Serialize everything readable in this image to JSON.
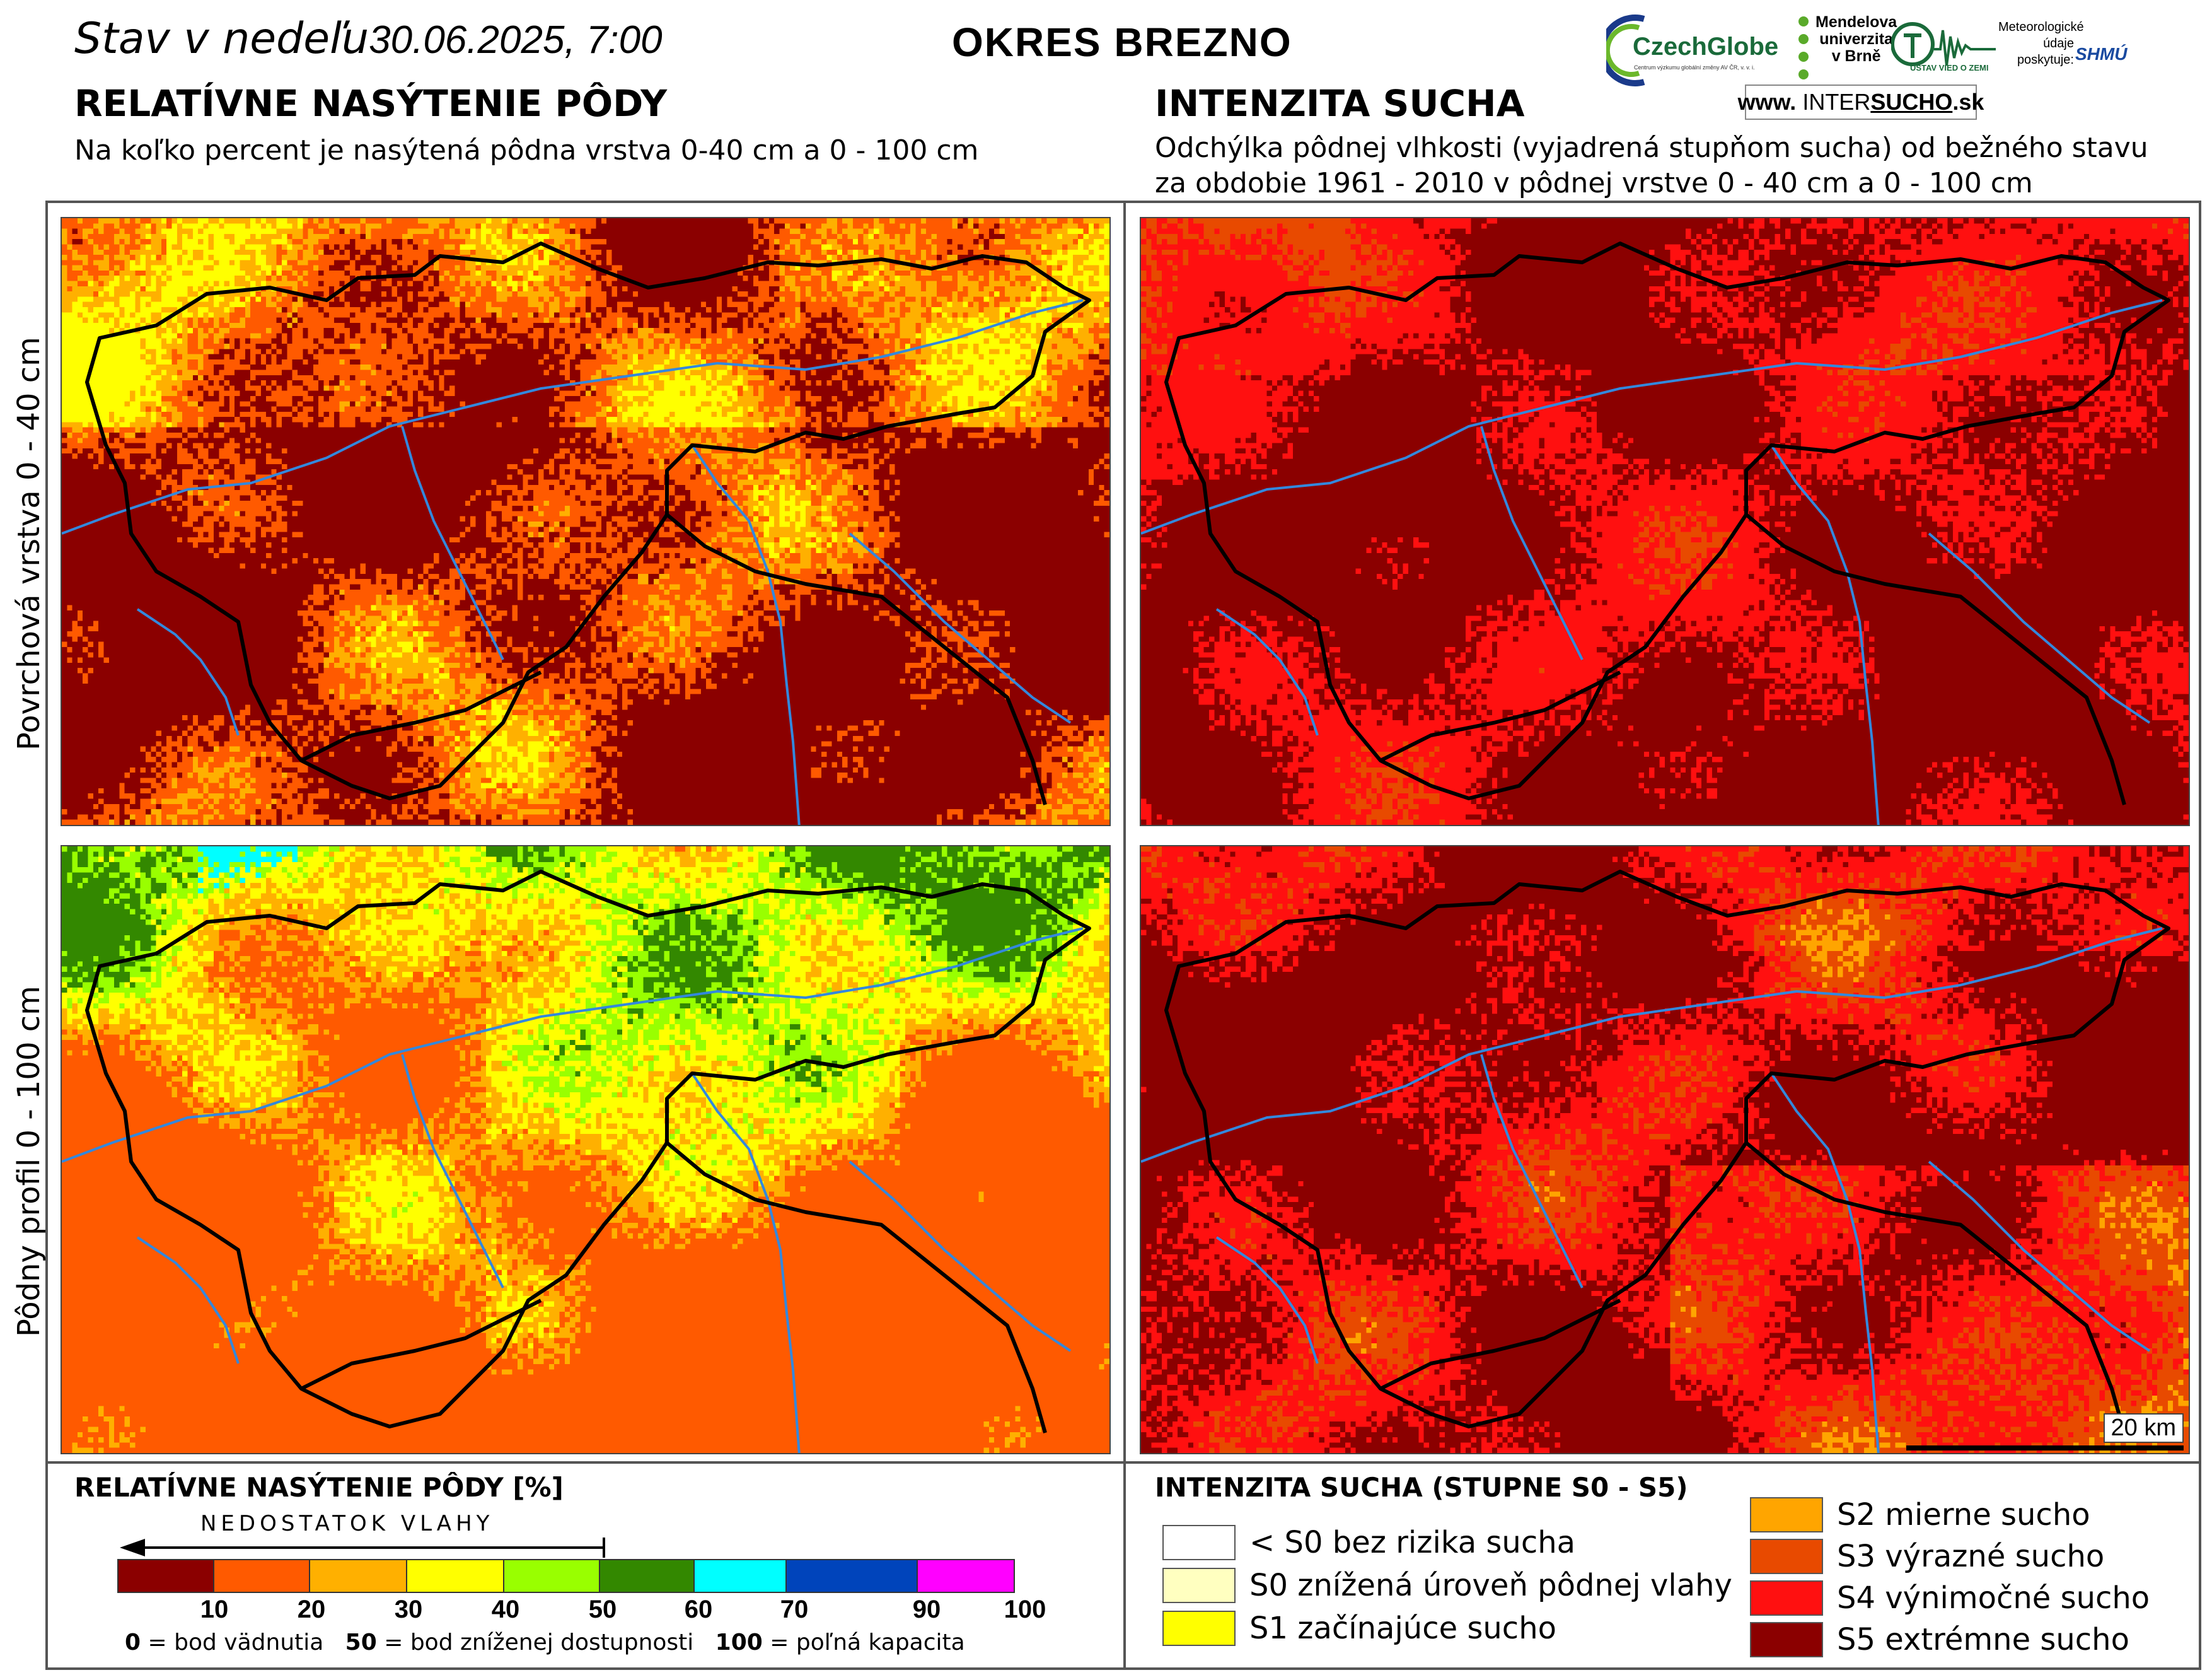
{
  "header": {
    "stav_prefix": "Stav v nedeľu",
    "date": "30.06.2025, 7:00",
    "district": "OKRES  BREZNO"
  },
  "left_panel": {
    "title": "RELATÍVNE NASÝTENIE PÔDY",
    "subtitle": "Na koľko percent je nasýtená pôdna vrstva 0-40 cm a 0 - 100 cm"
  },
  "right_panel": {
    "title": "INTENZITA SUCHA",
    "subtitle_line1": "Odchýlka pôdnej vlhkosti (vyjadrená stupňom sucha) od bežného stavu",
    "subtitle_line2": "za obdobie 1961 - 2010 v pôdnej vrstve 0 - 40 cm a 0 - 100 cm"
  },
  "row_labels": {
    "top": "Povrchová vrstva 0 - 40 cm",
    "bottom": "Pôdny profil 0 - 100 cm"
  },
  "logos": {
    "czechglobe": "CzechGlobe",
    "czechglobe_sub": "Centrum výzkumu globální změny AV ČR, v. v. i.",
    "mendel_line1": "Mendelova",
    "mendel_line2": "univerzita",
    "mendel_line3": "v Brně",
    "ustav": "ÚSTAV VIED O ZEMI",
    "meteo_line1": "Meteorologické",
    "meteo_line2": "údaje",
    "meteo_line3": "poskytuje:",
    "shmu": "SHMÚ",
    "intersucho_www": "www.",
    "intersucho_a": "INTER",
    "intersucho_b": "SUCHO",
    "intersucho_c": ".sk"
  },
  "scale": {
    "label": "20 km"
  },
  "saturation_legend": {
    "title": "RELATÍVNE NASÝTENIE PÔDY [%]",
    "arrow_label": "NEDOSTATOK VLAHY",
    "bins": [
      {
        "from": 0,
        "to": 10,
        "color": "#8b0000"
      },
      {
        "from": 10,
        "to": 20,
        "color": "#ff5a00"
      },
      {
        "from": 20,
        "to": 30,
        "color": "#ffb000"
      },
      {
        "from": 30,
        "to": 40,
        "color": "#ffff00"
      },
      {
        "from": 40,
        "to": 50,
        "color": "#99ff00"
      },
      {
        "from": 50,
        "to": 60,
        "color": "#338800"
      },
      {
        "from": 60,
        "to": 70,
        "color": "#00ffff"
      },
      {
        "from": 70,
        "to": 90,
        "color": "#0044bb"
      },
      {
        "from": 90,
        "to": 100,
        "color": "#ff00ff"
      }
    ],
    "ticks": [
      "10",
      "20",
      "30",
      "40",
      "50",
      "60",
      "70",
      "90",
      "100"
    ],
    "note_0_val": "0",
    "note_0_txt": " = bod vädnutia",
    "note_50_val": "50",
    "note_50_txt": " = bod zníženej dostupnosti",
    "note_100_val": "100",
    "note_100_txt": " = poľná kapacita"
  },
  "drought_legend": {
    "title": "INTENZITA SUCHA (STUPNE S0 - S5)",
    "items": [
      {
        "label": "< S0 bez rizika sucha",
        "color": "#ffffff"
      },
      {
        "label": "S0 znížená úroveň pôdnej vlahy",
        "color": "#ffffc0"
      },
      {
        "label": "S1 začínajúce sucho",
        "color": "#ffff00"
      },
      {
        "label": "S2 mierne sucho",
        "color": "#ffa500"
      },
      {
        "label": "S3 výrazné sucho",
        "color": "#e84a00"
      },
      {
        "label": "S4 výnimočné sucho",
        "color": "#ff1010"
      },
      {
        "label": "S5 extrémne sucho",
        "color": "#8b0000"
      }
    ]
  },
  "colors": {
    "river": "#3388dd",
    "border": "#000000",
    "frame": "#555555"
  }
}
